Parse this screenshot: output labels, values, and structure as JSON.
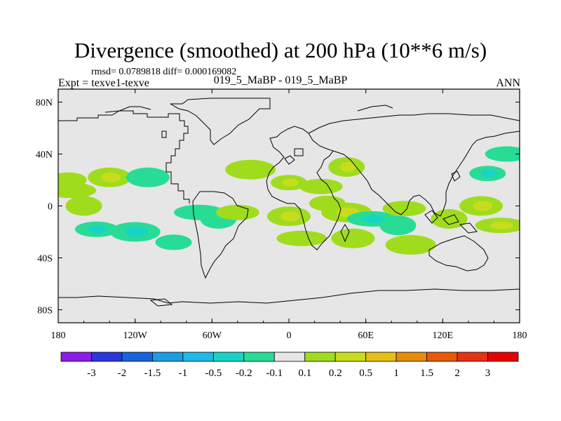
{
  "header": {
    "title": "Divergence (smoothed) at 200 hPa (10**6 m/s)",
    "stats": "rmsd= 0.0789818 diff= 0.000169082",
    "expt": "Expt = texve1-texve",
    "cases": "019_5_MaBP - 019_5_MaBP",
    "season": "ANN"
  },
  "chart_data": {
    "type": "heatmap",
    "title": "Divergence (smoothed) at 200 hPa (10**6 m/s)",
    "xlabel": "",
    "ylabel": "",
    "xlim": [
      -180,
      180
    ],
    "ylim": [
      -90,
      90
    ],
    "x_ticks": [
      {
        "value": -180,
        "label": "180"
      },
      {
        "value": -120,
        "label": "120W"
      },
      {
        "value": -60,
        "label": "60W"
      },
      {
        "value": 0,
        "label": "0"
      },
      {
        "value": 60,
        "label": "60E"
      },
      {
        "value": 120,
        "label": "120E"
      },
      {
        "value": 180,
        "label": "180"
      }
    ],
    "y_ticks": [
      {
        "value": 80,
        "label": "80N"
      },
      {
        "value": 40,
        "label": "40N"
      },
      {
        "value": 0,
        "label": "0"
      },
      {
        "value": -40,
        "label": "40S"
      },
      {
        "value": -80,
        "label": "80S"
      }
    ],
    "colorbar": {
      "levels": [
        "-3",
        "-2",
        "-1.5",
        "-1",
        "-0.5",
        "-0.2",
        "-0.1",
        "0.1",
        "0.2",
        "0.5",
        "1",
        "1.5",
        "2",
        "3"
      ],
      "colors": [
        "#8a1ee6",
        "#2a37dc",
        "#1764dc",
        "#1e9be1",
        "#1eb9e6",
        "#19d2c8",
        "#28dc96",
        "#e6e6e6",
        "#a0dc1e",
        "#c8dc1e",
        "#e6be14",
        "#e68c0a",
        "#e65a0a",
        "#e63214",
        "#e60000"
      ]
    },
    "features": [
      {
        "lon": -172,
        "lat": 20,
        "value": 0.2
      },
      {
        "lon": -140,
        "lat": 22,
        "value": 0.3
      },
      {
        "lon": -170,
        "lat": 12,
        "value": 0.2
      },
      {
        "lon": -160,
        "lat": 0,
        "value": 0.15
      },
      {
        "lon": -150,
        "lat": -18,
        "value": -0.3
      },
      {
        "lon": -120,
        "lat": -20,
        "value": -0.25
      },
      {
        "lon": -90,
        "lat": -28,
        "value": -0.2
      },
      {
        "lon": -110,
        "lat": 22,
        "value": -0.2
      },
      {
        "lon": -70,
        "lat": -5,
        "value": -0.2
      },
      {
        "lon": -55,
        "lat": -10,
        "value": -0.2
      },
      {
        "lon": -40,
        "lat": -5,
        "value": 0.2
      },
      {
        "lon": -30,
        "lat": 28,
        "value": 0.2
      },
      {
        "lon": 0,
        "lat": 18,
        "value": 0.3
      },
      {
        "lon": 0,
        "lat": -8,
        "value": 0.3
      },
      {
        "lon": 10,
        "lat": -25,
        "value": 0.2
      },
      {
        "lon": 45,
        "lat": 30,
        "value": 0.4
      },
      {
        "lon": 25,
        "lat": 15,
        "value": 0.2
      },
      {
        "lon": 45,
        "lat": -5,
        "value": 0.3
      },
      {
        "lon": 30,
        "lat": 2,
        "value": 0.2
      },
      {
        "lon": 50,
        "lat": -25,
        "value": 0.2
      },
      {
        "lon": 65,
        "lat": -10,
        "value": -0.3
      },
      {
        "lon": 85,
        "lat": -15,
        "value": -0.2
      },
      {
        "lon": 90,
        "lat": -2,
        "value": 0.2
      },
      {
        "lon": 95,
        "lat": -30,
        "value": 0.2
      },
      {
        "lon": 155,
        "lat": 25,
        "value": -0.3
      },
      {
        "lon": 150,
        "lat": 0,
        "value": 0.4
      },
      {
        "lon": 165,
        "lat": -15,
        "value": 0.3
      },
      {
        "lon": 125,
        "lat": -10,
        "value": 0.2
      },
      {
        "lon": 170,
        "lat": 40,
        "value": -0.2
      }
    ]
  }
}
